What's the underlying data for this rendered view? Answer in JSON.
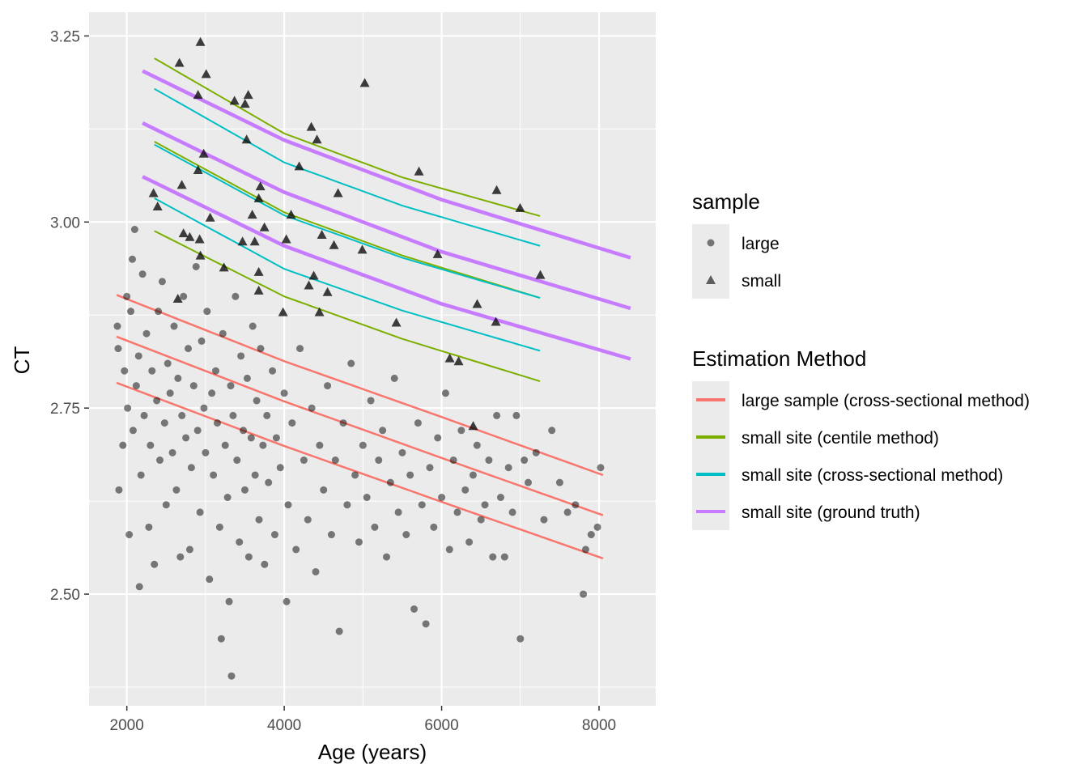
{
  "chart_data": {
    "type": "scatter",
    "title": "",
    "xlabel": "Age (years)",
    "ylabel": "CT",
    "xlim": [
      1520,
      8720
    ],
    "ylim": [
      2.35,
      3.282
    ],
    "xticks": [
      2000,
      4000,
      6000,
      8000
    ],
    "xtick_labels": [
      "2000",
      "4000",
      "6000",
      "8000"
    ],
    "yticks": [
      2.5,
      2.75,
      3.0,
      3.25
    ],
    "ytick_labels": [
      "2.50",
      "2.75",
      "3.00",
      "3.25"
    ],
    "grid": true,
    "legend_placement": "right",
    "legends": [
      {
        "title": "sample",
        "entries": [
          {
            "label": "large",
            "shape": "circle"
          },
          {
            "label": "small",
            "shape": "triangle"
          }
        ]
      },
      {
        "title": "Estimation Method",
        "entries": [
          {
            "label": "large sample (cross-sectional method)",
            "color": "#F8766D"
          },
          {
            "label": "small site (centile method)",
            "color": "#7CAE00"
          },
          {
            "label": "small site (cross-sectional method)",
            "color": "#00BFC4"
          },
          {
            "label": "small site (ground truth)",
            "color": "#C77CFF"
          }
        ]
      }
    ],
    "lines": [
      {
        "method": "large sample (cross-sectional method)",
        "color": "#F8766D",
        "x": [
          1870,
          4000,
          6000,
          8050
        ],
        "y": [
          2.902,
          2.813,
          2.738,
          2.66
        ]
      },
      {
        "method": "large sample (cross-sectional method)",
        "color": "#F8766D",
        "x": [
          1870,
          4000,
          6000,
          8050
        ],
        "y": [
          2.846,
          2.759,
          2.683,
          2.606
        ]
      },
      {
        "method": "large sample (cross-sectional method)",
        "color": "#F8766D",
        "x": [
          1870,
          4000,
          6000,
          8050
        ],
        "y": [
          2.784,
          2.699,
          2.624,
          2.548
        ]
      },
      {
        "method": "small site (centile method)",
        "color": "#7CAE00",
        "x": [
          2350,
          4000,
          5500,
          7250
        ],
        "y": [
          3.22,
          3.119,
          3.06,
          3.008
        ]
      },
      {
        "method": "small site (centile method)",
        "color": "#7CAE00",
        "x": [
          2350,
          4000,
          5500,
          7250
        ],
        "y": [
          3.108,
          3.013,
          2.955,
          2.898
        ]
      },
      {
        "method": "small site (centile method)",
        "color": "#7CAE00",
        "x": [
          2350,
          4000,
          5500,
          7250
        ],
        "y": [
          2.988,
          2.9,
          2.843,
          2.786
        ]
      },
      {
        "method": "small site (cross-sectional method)",
        "color": "#00BFC4",
        "x": [
          2350,
          4000,
          5500,
          7250
        ],
        "y": [
          3.179,
          3.08,
          3.022,
          2.968
        ]
      },
      {
        "method": "small site (cross-sectional method)",
        "color": "#00BFC4",
        "x": [
          2350,
          4000,
          5500,
          7250
        ],
        "y": [
          3.104,
          3.009,
          2.952,
          2.898
        ]
      },
      {
        "method": "small site (cross-sectional method)",
        "color": "#00BFC4",
        "x": [
          2350,
          4000,
          5500,
          7250
        ],
        "y": [
          3.032,
          2.937,
          2.881,
          2.827
        ]
      },
      {
        "method": "small site (ground truth)",
        "color": "#C77CFF",
        "x": [
          2200,
          4000,
          6000,
          8400
        ],
        "y": [
          3.203,
          3.11,
          3.03,
          2.952
        ]
      },
      {
        "method": "small site (ground truth)",
        "color": "#C77CFF",
        "x": [
          2200,
          4000,
          6000,
          8400
        ],
        "y": [
          3.133,
          3.04,
          2.96,
          2.884
        ]
      },
      {
        "method": "small site (ground truth)",
        "color": "#C77CFF",
        "x": [
          2200,
          4000,
          6000,
          8400
        ],
        "y": [
          3.061,
          2.968,
          2.89,
          2.816
        ]
      }
    ],
    "points_small": [
      [
        2668,
        3.214
      ],
      [
        2935,
        3.242
      ],
      [
        3008,
        3.199
      ],
      [
        2905,
        3.171
      ],
      [
        3368,
        3.163
      ],
      [
        3543,
        3.171
      ],
      [
        3502,
        3.159
      ],
      [
        5023,
        3.187
      ],
      [
        4344,
        3.128
      ],
      [
        4416,
        3.111
      ],
      [
        3522,
        3.111
      ],
      [
        4190,
        3.075
      ],
      [
        5712,
        3.068
      ],
      [
        6699,
        3.043
      ],
      [
        6997,
        3.019
      ],
      [
        7254,
        2.929
      ],
      [
        2339,
        3.039
      ],
      [
        2391,
        3.021
      ],
      [
        2977,
        3.092
      ],
      [
        2905,
        3.07
      ],
      [
        2699,
        3.05
      ],
      [
        2720,
        2.985
      ],
      [
        2800,
        2.98
      ],
      [
        2925,
        2.977
      ],
      [
        3470,
        2.974
      ],
      [
        3625,
        2.974
      ],
      [
        3594,
        3.01
      ],
      [
        3748,
        2.993
      ],
      [
        4026,
        2.977
      ],
      [
        3676,
        3.032
      ],
      [
        3697,
        3.048
      ],
      [
        4684,
        3.039
      ],
      [
        4087,
        3.01
      ],
      [
        4478,
        2.983
      ],
      [
        4632,
        2.969
      ],
      [
        4992,
        2.963
      ],
      [
        5949,
        2.957
      ],
      [
        3676,
        2.933
      ],
      [
        4375,
        2.928
      ],
      [
        4550,
        2.906
      ],
      [
        4313,
        2.915
      ],
      [
        5424,
        2.865
      ],
      [
        6452,
        2.89
      ],
      [
        6689,
        2.866
      ],
      [
        6103,
        2.817
      ],
      [
        6216,
        2.813
      ],
      [
        6401,
        2.726
      ],
      [
        2648,
        2.897
      ],
      [
        2935,
        2.955
      ],
      [
        3234,
        2.939
      ],
      [
        3676,
        2.908
      ],
      [
        3985,
        2.879
      ],
      [
        4447,
        2.879
      ],
      [
        3059,
        3.006
      ]
    ],
    "points_large": [
      [
        1880,
        2.86
      ],
      [
        1890,
        2.83
      ],
      [
        1900,
        2.64
      ],
      [
        1950,
        2.7
      ],
      [
        1970,
        2.8
      ],
      [
        2000,
        2.9
      ],
      [
        2010,
        2.75
      ],
      [
        2030,
        2.58
      ],
      [
        2050,
        2.88
      ],
      [
        2070,
        2.95
      ],
      [
        2080,
        2.72
      ],
      [
        2100,
        2.99
      ],
      [
        2120,
        2.78
      ],
      [
        2150,
        2.82
      ],
      [
        2160,
        2.51
      ],
      [
        2180,
        2.66
      ],
      [
        2200,
        2.93
      ],
      [
        2220,
        2.74
      ],
      [
        2250,
        2.85
      ],
      [
        2280,
        2.59
      ],
      [
        2300,
        2.7
      ],
      [
        2320,
        2.8
      ],
      [
        2350,
        2.54
      ],
      [
        2380,
        2.76
      ],
      [
        2400,
        2.88
      ],
      [
        2420,
        2.68
      ],
      [
        2450,
        2.92
      ],
      [
        2480,
        2.73
      ],
      [
        2500,
        2.62
      ],
      [
        2520,
        2.81
      ],
      [
        2550,
        2.77
      ],
      [
        2580,
        2.69
      ],
      [
        2600,
        2.86
      ],
      [
        2630,
        2.64
      ],
      [
        2650,
        2.79
      ],
      [
        2680,
        2.55
      ],
      [
        2700,
        2.74
      ],
      [
        2720,
        2.9
      ],
      [
        2750,
        2.71
      ],
      [
        2780,
        2.83
      ],
      [
        2800,
        2.56
      ],
      [
        2820,
        2.67
      ],
      [
        2850,
        2.78
      ],
      [
        2880,
        2.94
      ],
      [
        2900,
        2.72
      ],
      [
        2930,
        2.61
      ],
      [
        2950,
        2.84
      ],
      [
        2980,
        2.75
      ],
      [
        3000,
        2.69
      ],
      [
        3020,
        2.88
      ],
      [
        3050,
        2.52
      ],
      [
        3080,
        2.77
      ],
      [
        3100,
        2.66
      ],
      [
        3130,
        2.8
      ],
      [
        3150,
        2.73
      ],
      [
        3180,
        2.59
      ],
      [
        3200,
        2.44
      ],
      [
        3220,
        2.85
      ],
      [
        3250,
        2.7
      ],
      [
        3280,
        2.63
      ],
      [
        3300,
        2.49
      ],
      [
        3320,
        2.78
      ],
      [
        3330,
        2.39
      ],
      [
        3350,
        2.74
      ],
      [
        3380,
        2.9
      ],
      [
        3400,
        2.68
      ],
      [
        3430,
        2.57
      ],
      [
        3450,
        2.82
      ],
      [
        3480,
        2.72
      ],
      [
        3500,
        2.64
      ],
      [
        3530,
        2.79
      ],
      [
        3550,
        2.55
      ],
      [
        3580,
        2.71
      ],
      [
        3600,
        2.86
      ],
      [
        3630,
        2.66
      ],
      [
        3650,
        2.76
      ],
      [
        3680,
        2.6
      ],
      [
        3700,
        2.83
      ],
      [
        3730,
        2.7
      ],
      [
        3750,
        2.54
      ],
      [
        3780,
        2.74
      ],
      [
        3800,
        2.65
      ],
      [
        3850,
        2.8
      ],
      [
        3880,
        2.58
      ],
      [
        3900,
        2.71
      ],
      [
        3950,
        2.67
      ],
      [
        4000,
        2.77
      ],
      [
        4030,
        2.49
      ],
      [
        4050,
        2.62
      ],
      [
        4100,
        2.73
      ],
      [
        4150,
        2.56
      ],
      [
        4200,
        2.83
      ],
      [
        4250,
        2.68
      ],
      [
        4300,
        2.6
      ],
      [
        4350,
        2.75
      ],
      [
        4400,
        2.53
      ],
      [
        4450,
        2.7
      ],
      [
        4500,
        2.64
      ],
      [
        4550,
        2.78
      ],
      [
        4600,
        2.58
      ],
      [
        4650,
        2.68
      ],
      [
        4700,
        2.45
      ],
      [
        4750,
        2.73
      ],
      [
        4800,
        2.62
      ],
      [
        4850,
        2.81
      ],
      [
        4900,
        2.66
      ],
      [
        4950,
        2.57
      ],
      [
        5000,
        2.7
      ],
      [
        5050,
        2.63
      ],
      [
        5100,
        2.76
      ],
      [
        5150,
        2.59
      ],
      [
        5200,
        2.68
      ],
      [
        5250,
        2.72
      ],
      [
        5300,
        2.55
      ],
      [
        5350,
        2.65
      ],
      [
        5400,
        2.79
      ],
      [
        5450,
        2.61
      ],
      [
        5500,
        2.69
      ],
      [
        5550,
        2.58
      ],
      [
        5600,
        2.66
      ],
      [
        5650,
        2.48
      ],
      [
        5700,
        2.73
      ],
      [
        5750,
        2.62
      ],
      [
        5800,
        2.46
      ],
      [
        5850,
        2.67
      ],
      [
        5900,
        2.59
      ],
      [
        5950,
        2.71
      ],
      [
        6000,
        2.63
      ],
      [
        6050,
        2.77
      ],
      [
        6100,
        2.56
      ],
      [
        6150,
        2.68
      ],
      [
        6200,
        2.61
      ],
      [
        6250,
        2.72
      ],
      [
        6300,
        2.64
      ],
      [
        6350,
        2.57
      ],
      [
        6400,
        2.66
      ],
      [
        6450,
        2.7
      ],
      [
        6500,
        2.6
      ],
      [
        6550,
        2.62
      ],
      [
        6600,
        2.68
      ],
      [
        6650,
        2.55
      ],
      [
        6700,
        2.74
      ],
      [
        6750,
        2.63
      ],
      [
        6800,
        2.55
      ],
      [
        6850,
        2.67
      ],
      [
        6900,
        2.61
      ],
      [
        6950,
        2.74
      ],
      [
        7000,
        2.44
      ],
      [
        7050,
        2.68
      ],
      [
        7100,
        2.65
      ],
      [
        7200,
        2.69
      ],
      [
        7300,
        2.6
      ],
      [
        7400,
        2.72
      ],
      [
        7500,
        2.65
      ],
      [
        7600,
        2.61
      ],
      [
        7700,
        2.62
      ],
      [
        7800,
        2.5
      ],
      [
        7830,
        2.56
      ],
      [
        7900,
        2.58
      ],
      [
        7980,
        2.59
      ],
      [
        8020,
        2.67
      ]
    ]
  }
}
